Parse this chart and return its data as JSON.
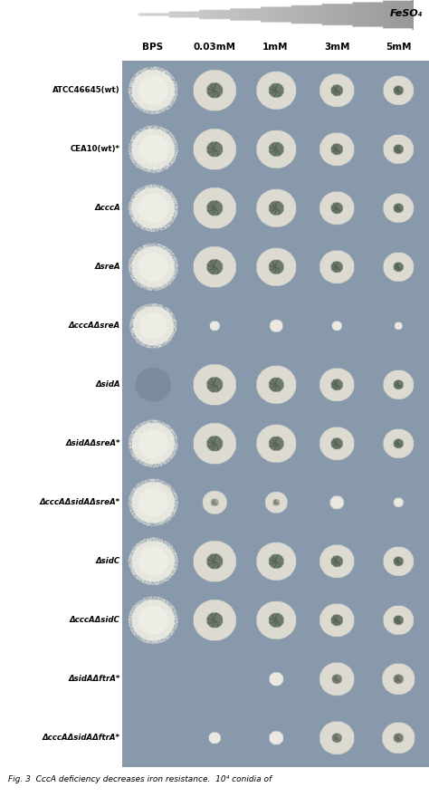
{
  "title": "FeSO₄",
  "col_headers": [
    "BPS",
    "0.03mM",
    "1mM",
    "3mM",
    "5mM"
  ],
  "row_labels": [
    "ATCC46645(wt)",
    "CEA10(wt)*",
    "ΔcccA",
    "ΔsreA",
    "ΔcccAΔsreA",
    "ΔsidA",
    "ΔsidAΔsreA*",
    "ΔcccAΔsidAΔsreA*",
    "ΔsidC",
    "ΔcccAΔsidC",
    "ΔsidAΔftrA*",
    "ΔcccAΔsidAΔftrA*"
  ],
  "n_rows": 12,
  "n_cols": 5,
  "cell_bg": "#8a9aaa",
  "fig_bg": "#ffffff",
  "caption": "Fig. 3  CccA deficiency decreases iron resistance.  10⁴ conidia of",
  "arrow_grad_left": "#d8d8d8",
  "arrow_grad_right": "#888888"
}
